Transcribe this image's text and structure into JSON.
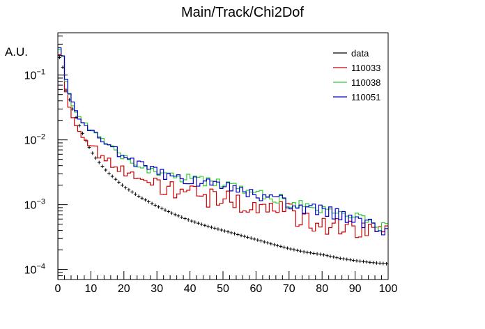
{
  "chart_data": {
    "type": "line",
    "title": "Main/Track/Chi2Dof",
    "xlabel": "",
    "ylabel": "A.U.",
    "xlim": [
      0,
      100
    ],
    "ylim": [
      7e-05,
      0.45
    ],
    "yscale": "log",
    "grid": false,
    "legend_position": "top-right",
    "x_ticks": [
      0,
      10,
      20,
      30,
      40,
      50,
      60,
      70,
      80,
      90,
      100
    ],
    "x_tick_labels": [
      "0",
      "10",
      "20",
      "30",
      "40",
      "50",
      "60",
      "70",
      "80",
      "90",
      "100"
    ],
    "y_ticks": [
      0.0001,
      0.001,
      0.01,
      0.1
    ],
    "y_tick_labels": [
      {
        "base": "10",
        "exp": "−4"
      },
      {
        "base": "10",
        "exp": "−3"
      },
      {
        "base": "10",
        "exp": "−2"
      },
      {
        "base": "10",
        "exp": "−1"
      }
    ],
    "series": [
      {
        "name": "data",
        "color": "#000000",
        "style": "points",
        "knots": [
          [
            0,
            0.14
          ],
          [
            1,
            0.25
          ],
          [
            2,
            0.07
          ],
          [
            4,
            0.035
          ],
          [
            6,
            0.019
          ],
          [
            8,
            0.011
          ],
          [
            10,
            0.0068
          ],
          [
            12,
            0.0048
          ],
          [
            15,
            0.0032
          ],
          [
            20,
            0.0019
          ],
          [
            25,
            0.0013
          ],
          [
            30,
            0.00095
          ],
          [
            35,
            0.00072
          ],
          [
            40,
            0.00057
          ],
          [
            45,
            0.00047
          ],
          [
            50,
            0.0004
          ],
          [
            55,
            0.00034
          ],
          [
            60,
            0.00029
          ],
          [
            65,
            0.000245
          ],
          [
            70,
            0.00021
          ],
          [
            75,
            0.000185
          ],
          [
            80,
            0.00017
          ],
          [
            85,
            0.00015
          ],
          [
            90,
            0.000137
          ],
          [
            95,
            0.000128
          ],
          [
            100,
            0.000122
          ]
        ],
        "noise": 0
      },
      {
        "name": "110033",
        "color": "#cc0000",
        "style": "step",
        "knots": [
          [
            0,
            0.12
          ],
          [
            1,
            0.38
          ],
          [
            2,
            0.09
          ],
          [
            3,
            0.04
          ],
          [
            4,
            0.025
          ],
          [
            6,
            0.016
          ],
          [
            8,
            0.011
          ],
          [
            10,
            0.008
          ],
          [
            12,
            0.0065
          ],
          [
            15,
            0.0052
          ],
          [
            20,
            0.0036
          ],
          [
            25,
            0.0024
          ],
          [
            30,
            0.0019
          ],
          [
            35,
            0.0017
          ],
          [
            40,
            0.0015
          ],
          [
            45,
            0.0013
          ],
          [
            50,
            0.0012
          ],
          [
            55,
            0.0011
          ],
          [
            60,
            0.001
          ],
          [
            65,
            0.00085
          ],
          [
            70,
            0.00075
          ],
          [
            75,
            0.00055
          ],
          [
            80,
            0.0005
          ],
          [
            85,
            0.00045
          ],
          [
            90,
            0.00042
          ],
          [
            95,
            0.0004
          ],
          [
            100,
            0.00038
          ]
        ],
        "noise": 0.22
      },
      {
        "name": "110038",
        "color": "#33cc33",
        "style": "step",
        "knots": [
          [
            0,
            0.16
          ],
          [
            1,
            0.4
          ],
          [
            2,
            0.11
          ],
          [
            3,
            0.06
          ],
          [
            4,
            0.04
          ],
          [
            6,
            0.024
          ],
          [
            8,
            0.018
          ],
          [
            10,
            0.014
          ],
          [
            12,
            0.011
          ],
          [
            15,
            0.0085
          ],
          [
            20,
            0.0055
          ],
          [
            25,
            0.004
          ],
          [
            30,
            0.0032
          ],
          [
            35,
            0.0028
          ],
          [
            40,
            0.0025
          ],
          [
            45,
            0.0022
          ],
          [
            50,
            0.002
          ],
          [
            55,
            0.0017
          ],
          [
            60,
            0.0015
          ],
          [
            65,
            0.0013
          ],
          [
            70,
            0.0011
          ],
          [
            75,
            0.00095
          ],
          [
            80,
            0.00085
          ],
          [
            85,
            0.00075
          ],
          [
            90,
            0.00065
          ],
          [
            95,
            0.0005
          ],
          [
            100,
            0.00045
          ]
        ],
        "noise": 0.12
      },
      {
        "name": "110051",
        "color": "#0000cc",
        "style": "step",
        "knots": [
          [
            0,
            0.2
          ],
          [
            1,
            0.35
          ],
          [
            2,
            0.12
          ],
          [
            3,
            0.06
          ],
          [
            4,
            0.04
          ],
          [
            6,
            0.025
          ],
          [
            8,
            0.018
          ],
          [
            10,
            0.014
          ],
          [
            12,
            0.011
          ],
          [
            15,
            0.0085
          ],
          [
            20,
            0.0056
          ],
          [
            25,
            0.004
          ],
          [
            30,
            0.0031
          ],
          [
            35,
            0.0027
          ],
          [
            40,
            0.0024
          ],
          [
            45,
            0.0021
          ],
          [
            50,
            0.0019
          ],
          [
            55,
            0.0017
          ],
          [
            60,
            0.0014
          ],
          [
            65,
            0.0012
          ],
          [
            70,
            0.00105
          ],
          [
            75,
            0.0009
          ],
          [
            80,
            0.0008
          ],
          [
            85,
            0.0007
          ],
          [
            90,
            0.0006
          ],
          [
            95,
            0.0005
          ],
          [
            100,
            0.00036
          ]
        ],
        "noise": 0.14
      }
    ]
  }
}
